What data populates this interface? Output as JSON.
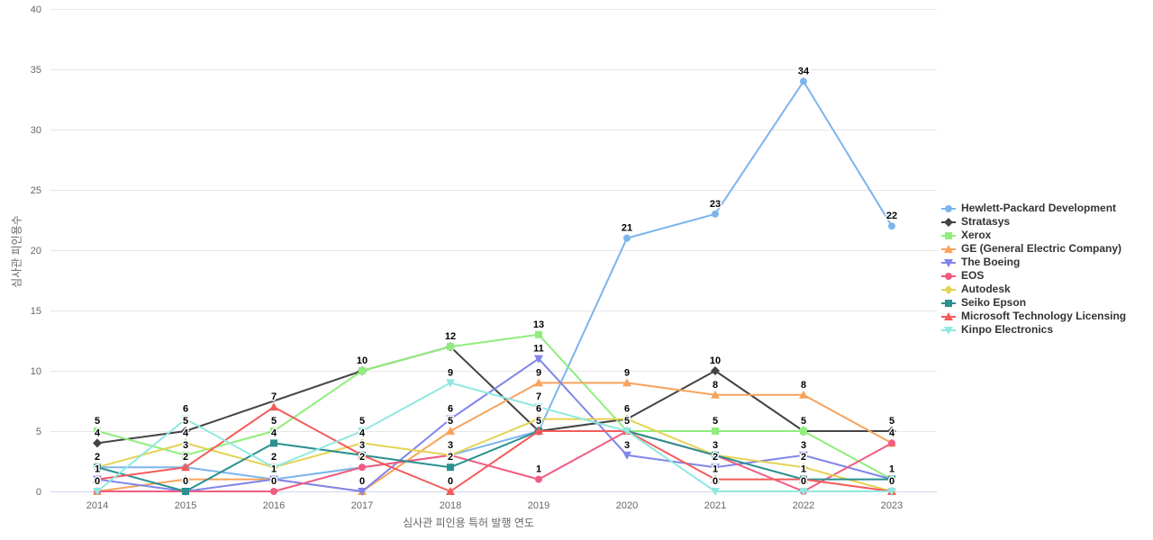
{
  "chart_data": {
    "type": "line",
    "title": "",
    "xlabel": "심사관 피인용 특허 발행 연도",
    "ylabel": "심사관 피인용수",
    "x_categories": [
      "2014",
      "2015",
      "2016",
      "2017",
      "2018",
      "2019",
      "2020",
      "2021",
      "2022",
      "2023"
    ],
    "y_ticks": [
      0,
      5,
      10,
      15,
      20,
      25,
      30,
      35,
      40
    ],
    "ylim": [
      0,
      40
    ],
    "grid": "horizontal",
    "legend_position": "right",
    "colors": {
      "grid_line": "#e6e6e6",
      "axis_line": "#ccd6eb",
      "tick_label": "#666666",
      "data_label": "#000000",
      "legend_text": "#333333"
    },
    "series": [
      {
        "name": "Hewlett-Packard Development",
        "color": "#7cb5ec",
        "marker": "circle",
        "values": [
          2,
          2,
          1,
          2,
          3,
          5,
          21,
          23,
          34,
          22
        ],
        "labels": [
          null,
          null,
          null,
          null,
          null,
          null,
          21,
          23,
          34,
          22
        ]
      },
      {
        "name": "Stratasys",
        "color": "#434348",
        "marker": "diamond",
        "values": [
          4,
          5,
          null,
          10,
          12,
          5,
          6,
          10,
          5,
          5
        ],
        "labels": [
          4,
          5,
          null,
          null,
          null,
          null,
          null,
          10,
          null,
          5
        ]
      },
      {
        "name": "Xerox",
        "color": "#90ed7d",
        "marker": "square",
        "values": [
          5,
          3,
          5,
          10,
          12,
          13,
          5,
          5,
          5,
          1
        ],
        "labels": [
          5,
          3,
          5,
          10,
          12,
          13,
          null,
          5,
          5,
          null
        ]
      },
      {
        "name": "GE (General Electric Company)",
        "color": "#f7a35c",
        "marker": "triangle",
        "values": [
          0,
          1,
          1,
          0,
          5,
          9,
          9,
          8,
          8,
          4
        ],
        "labels": [
          null,
          null,
          1,
          null,
          5,
          9,
          9,
          8,
          8,
          null
        ]
      },
      {
        "name": "The Boeing",
        "color": "#8085e9",
        "marker": "triangle-down",
        "values": [
          1,
          0,
          1,
          0,
          6,
          11,
          3,
          2,
          3,
          1
        ],
        "labels": [
          null,
          null,
          null,
          0,
          6,
          11,
          3,
          2,
          3,
          null
        ]
      },
      {
        "name": "EOS",
        "color": "#f15c80",
        "marker": "circle",
        "values": [
          0,
          0,
          0,
          2,
          3,
          1,
          5,
          3,
          0,
          4
        ],
        "labels": [
          0,
          null,
          0,
          2,
          null,
          1,
          null,
          null,
          0,
          4
        ]
      },
      {
        "name": "Autodesk",
        "color": "#e4d354",
        "marker": "diamond",
        "values": [
          2,
          4,
          2,
          4,
          3,
          6,
          6,
          3,
          2,
          0
        ],
        "labels": [
          null,
          4,
          null,
          4,
          3,
          6,
          6,
          null,
          2,
          null
        ]
      },
      {
        "name": "Seiko Epson",
        "color": "#2b908f",
        "marker": "square",
        "values": [
          2,
          0,
          4,
          3,
          2,
          5,
          5,
          3,
          1,
          1
        ],
        "labels": [
          2,
          0,
          4,
          3,
          2,
          null,
          5,
          3,
          1,
          1
        ]
      },
      {
        "name": "Microsoft Technology Licensing",
        "color": "#f45b5b",
        "marker": "triangle",
        "values": [
          1,
          2,
          7,
          3,
          0,
          5,
          5,
          1,
          1,
          0
        ],
        "labels": [
          1,
          2,
          7,
          null,
          0,
          5,
          null,
          1,
          null,
          null
        ]
      },
      {
        "name": "Kinpo Electronics",
        "color": "#91e8e1",
        "marker": "triangle-down",
        "values": [
          0,
          6,
          2,
          5,
          9,
          7,
          5,
          0,
          0,
          0
        ],
        "labels": [
          null,
          6,
          2,
          5,
          9,
          7,
          null,
          0,
          null,
          0
        ]
      }
    ]
  }
}
